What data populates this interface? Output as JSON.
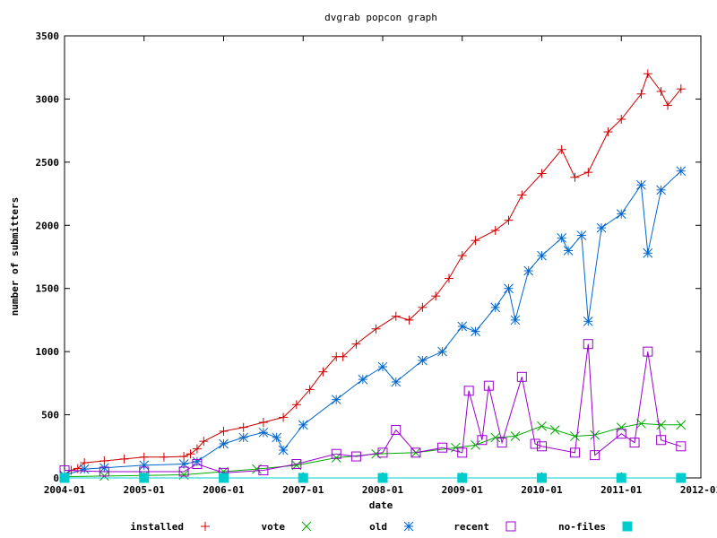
{
  "chart_data": {
    "type": "line",
    "title": "dvgrab popcon graph",
    "xlabel": "date",
    "ylabel": "number of submitters",
    "ylim": [
      0,
      3500
    ],
    "xlim": [
      "2004-01",
      "2012-01"
    ],
    "grid": false,
    "legend_position": "bottom",
    "y_ticks": [
      "0",
      "500",
      "1000",
      "1500",
      "2000",
      "2500",
      "3000",
      "3500"
    ],
    "x_ticks": [
      "2004-01",
      "2005-01",
      "2006-01",
      "2007-01",
      "2008-01",
      "2009-01",
      "2010-01",
      "2011-01",
      "2012-01"
    ],
    "series": [
      {
        "name": "installed",
        "color": "#cc0000",
        "marker": "plus",
        "points": [
          [
            "2004-01",
            30
          ],
          [
            "2004-02",
            60
          ],
          [
            "2004-03",
            75
          ],
          [
            "2004-04",
            120
          ],
          [
            "2004-07",
            135
          ],
          [
            "2004-10",
            150
          ],
          [
            "2005-01",
            165
          ],
          [
            "2005-04",
            165
          ],
          [
            "2005-07",
            170
          ],
          [
            "2005-08",
            190
          ],
          [
            "2005-09",
            230
          ],
          [
            "2005-10",
            290
          ],
          [
            "2006-01",
            370
          ],
          [
            "2006-04",
            400
          ],
          [
            "2006-07",
            440
          ],
          [
            "2006-10",
            480
          ],
          [
            "2006-12",
            580
          ],
          [
            "2007-02",
            700
          ],
          [
            "2007-04",
            840
          ],
          [
            "2007-06",
            960
          ],
          [
            "2007-07",
            960
          ],
          [
            "2007-09",
            1060
          ],
          [
            "2007-12",
            1180
          ],
          [
            "2008-03",
            1280
          ],
          [
            "2008-05",
            1250
          ],
          [
            "2008-07",
            1350
          ],
          [
            "2008-09",
            1440
          ],
          [
            "2008-11",
            1580
          ],
          [
            "2009-01",
            1760
          ],
          [
            "2009-03",
            1880
          ],
          [
            "2009-06",
            1960
          ],
          [
            "2009-08",
            2040
          ],
          [
            "2009-10",
            2240
          ],
          [
            "2010-01",
            2410
          ],
          [
            "2010-04",
            2600
          ],
          [
            "2010-06",
            2380
          ],
          [
            "2010-08",
            2420
          ],
          [
            "2010-11",
            2740
          ],
          [
            "2011-01",
            2840
          ],
          [
            "2011-04",
            3040
          ],
          [
            "2011-05",
            3200
          ],
          [
            "2011-07",
            3060
          ],
          [
            "2011-08",
            2950
          ],
          [
            "2011-10",
            3080
          ]
        ]
      },
      {
        "name": "vote",
        "color": "#00aa00",
        "marker": "cross",
        "points": [
          [
            "2004-01",
            10
          ],
          [
            "2004-07",
            15
          ],
          [
            "2005-01",
            20
          ],
          [
            "2005-07",
            25
          ],
          [
            "2006-01",
            50
          ],
          [
            "2006-06",
            70
          ],
          [
            "2006-12",
            100
          ],
          [
            "2007-06",
            160
          ],
          [
            "2007-12",
            190
          ],
          [
            "2008-06",
            200
          ],
          [
            "2008-12",
            240
          ],
          [
            "2009-03",
            260
          ],
          [
            "2009-06",
            320
          ],
          [
            "2009-09",
            330
          ],
          [
            "2010-01",
            410
          ],
          [
            "2010-03",
            380
          ],
          [
            "2010-06",
            330
          ],
          [
            "2010-09",
            340
          ],
          [
            "2011-01",
            400
          ],
          [
            "2011-04",
            430
          ],
          [
            "2011-07",
            420
          ],
          [
            "2011-10",
            420
          ]
        ]
      },
      {
        "name": "old",
        "color": "#0066cc",
        "marker": "star",
        "points": [
          [
            "2004-01",
            20
          ],
          [
            "2004-04",
            70
          ],
          [
            "2004-07",
            80
          ],
          [
            "2005-01",
            100
          ],
          [
            "2005-07",
            110
          ],
          [
            "2005-09",
            130
          ],
          [
            "2006-01",
            270
          ],
          [
            "2006-04",
            320
          ],
          [
            "2006-07",
            360
          ],
          [
            "2006-09",
            320
          ],
          [
            "2006-10",
            220
          ],
          [
            "2007-01",
            420
          ],
          [
            "2007-06",
            620
          ],
          [
            "2007-10",
            780
          ],
          [
            "2008-01",
            880
          ],
          [
            "2008-03",
            760
          ],
          [
            "2008-07",
            930
          ],
          [
            "2008-10",
            1000
          ],
          [
            "2009-01",
            1200
          ],
          [
            "2009-03",
            1160
          ],
          [
            "2009-06",
            1350
          ],
          [
            "2009-08",
            1500
          ],
          [
            "2009-09",
            1250
          ],
          [
            "2009-11",
            1640
          ],
          [
            "2010-01",
            1760
          ],
          [
            "2010-04",
            1900
          ],
          [
            "2010-05",
            1800
          ],
          [
            "2010-07",
            1920
          ],
          [
            "2010-08",
            1240
          ],
          [
            "2010-10",
            1980
          ],
          [
            "2011-01",
            2090
          ],
          [
            "2011-04",
            2320
          ],
          [
            "2011-05",
            1780
          ],
          [
            "2011-07",
            2280
          ],
          [
            "2011-10",
            2430
          ]
        ]
      },
      {
        "name": "recent",
        "color": "#9900cc",
        "marker": "box",
        "points": [
          [
            "2004-01",
            60
          ],
          [
            "2004-07",
            50
          ],
          [
            "2005-01",
            50
          ],
          [
            "2005-07",
            50
          ],
          [
            "2005-09",
            110
          ],
          [
            "2006-01",
            40
          ],
          [
            "2006-07",
            60
          ],
          [
            "2006-12",
            110
          ],
          [
            "2007-06",
            190
          ],
          [
            "2007-09",
            170
          ],
          [
            "2008-01",
            200
          ],
          [
            "2008-03",
            380
          ],
          [
            "2008-06",
            200
          ],
          [
            "2008-10",
            240
          ],
          [
            "2009-01",
            200
          ],
          [
            "2009-02",
            690
          ],
          [
            "2009-04",
            300
          ],
          [
            "2009-05",
            730
          ],
          [
            "2009-07",
            280
          ],
          [
            "2009-10",
            800
          ],
          [
            "2009-12",
            270
          ],
          [
            "2010-01",
            250
          ],
          [
            "2010-06",
            200
          ],
          [
            "2010-08",
            1060
          ],
          [
            "2010-09",
            180
          ],
          [
            "2011-01",
            350
          ],
          [
            "2011-03",
            280
          ],
          [
            "2011-05",
            1000
          ],
          [
            "2011-07",
            300
          ],
          [
            "2011-10",
            250
          ]
        ]
      },
      {
        "name": "no-files",
        "color": "#00cccc",
        "marker": "filled-box",
        "points": [
          [
            "2004-01",
            0
          ],
          [
            "2005-01",
            0
          ],
          [
            "2006-01",
            0
          ],
          [
            "2007-01",
            0
          ],
          [
            "2008-01",
            0
          ],
          [
            "2009-01",
            0
          ],
          [
            "2010-01",
            0
          ],
          [
            "2011-01",
            0
          ],
          [
            "2011-10",
            0
          ]
        ]
      }
    ]
  }
}
